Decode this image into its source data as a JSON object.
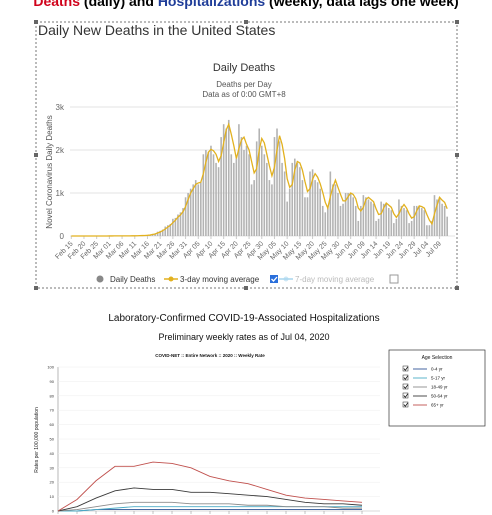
{
  "header": {
    "parts": [
      "Deaths",
      " (daily) and ",
      "Hospitalizations",
      " (weekly, data lags one week)"
    ]
  },
  "chart_data": [
    {
      "type": "bar",
      "frame_title": "Daily New Deaths in the United States",
      "title": "Daily Deaths",
      "subtitle": "Deaths per Day",
      "note": "Data as of 0:00 GMT+8",
      "y_label": "Novel Coronavirus Daily Deaths",
      "categories": [
        "Feb 15",
        null,
        null,
        null,
        null,
        "Feb 20",
        null,
        null,
        null,
        null,
        "Feb 25",
        null,
        null,
        null,
        null,
        "Mar 01",
        null,
        null,
        null,
        null,
        "Mar 06",
        null,
        null,
        null,
        null,
        "Mar 11",
        null,
        null,
        null,
        null,
        "Mar 16",
        null,
        null,
        null,
        null,
        "Mar 21",
        null,
        null,
        null,
        null,
        "Mar 26",
        null,
        null,
        null,
        null,
        "Mar 31",
        null,
        null,
        null,
        null,
        "Apr 05",
        null,
        null,
        null,
        null,
        "Apr 10",
        null,
        null,
        null,
        null,
        "Apr 15",
        null,
        null,
        null,
        null,
        "Apr 20",
        null,
        null,
        null,
        null,
        "Apr 25",
        null,
        null,
        null,
        null,
        "Apr 30",
        null,
        null,
        null,
        null,
        "May 05",
        null,
        null,
        null,
        null,
        "May 10",
        null,
        null,
        null,
        null,
        "May 15",
        null,
        null,
        null,
        null,
        "May 20",
        null,
        null,
        null,
        null,
        "May 25",
        null,
        null,
        null,
        null,
        "May 30",
        null,
        null,
        null,
        null,
        "Jun 04",
        null,
        null,
        null,
        null,
        "Jun 09",
        null,
        null,
        null,
        null,
        "Jun 14",
        null,
        null,
        null,
        null,
        "Jun 19",
        null,
        null,
        null,
        null,
        "Jun 24",
        null,
        null,
        null,
        null,
        "Jun 29",
        null,
        null,
        null,
        null,
        "Jul 04",
        null,
        null,
        null,
        null,
        "Jul 09",
        null,
        null,
        null
      ],
      "series": [
        {
          "name": "Daily Deaths",
          "type": "bar",
          "color": "#b3b3b3",
          "values": [
            0,
            0,
            0,
            0,
            0,
            0,
            0,
            0,
            0,
            0,
            0,
            0,
            0,
            0,
            1,
            1,
            1,
            4,
            3,
            2,
            1,
            2,
            4,
            3,
            4,
            6,
            8,
            10,
            12,
            15,
            22,
            30,
            50,
            60,
            100,
            120,
            150,
            220,
            250,
            280,
            400,
            420,
            500,
            550,
            650,
            900,
            1000,
            1100,
            1200,
            1300,
            1200,
            1250,
            1900,
            2000,
            1950,
            2100,
            1900,
            1700,
            1600,
            2300,
            2600,
            2500,
            2700,
            1900,
            1700,
            1800,
            2600,
            2300,
            2000,
            2100,
            1900,
            1200,
            1300,
            2200,
            2500,
            2100,
            1900,
            1700,
            1300,
            1200,
            2300,
            2500,
            2200,
            1700,
            1500,
            800,
            1100,
            1700,
            1800,
            1700,
            1600,
            1300,
            900,
            900,
            1500,
            1550,
            1300,
            1250,
            1100,
            700,
            550,
            700,
            1500,
            1200,
            1200,
            1000,
            700,
            750,
            1000,
            1000,
            1000,
            900,
            700,
            350,
            700,
            950,
            900,
            850,
            800,
            750,
            350,
            400,
            800,
            750,
            750,
            650,
            600,
            300,
            400,
            850,
            700,
            650,
            600,
            300,
            350,
            700,
            700,
            700,
            650,
            600,
            250,
            250,
            350,
            950,
            850,
            900,
            750,
            700,
            450
          ]
        },
        {
          "name": "3-day moving average",
          "type": "line",
          "color": "#e2b11f",
          "values": [
            0,
            0,
            0,
            0,
            0,
            0,
            0,
            0,
            0,
            0,
            0,
            0,
            0,
            0,
            0,
            1,
            1,
            2,
            3,
            3,
            2,
            2,
            2,
            3,
            4,
            4,
            6,
            8,
            10,
            12,
            16,
            22,
            34,
            47,
            70,
            93,
            123,
            163,
            207,
            250,
            310,
            367,
            440,
            490,
            567,
            683,
            850,
            1000,
            1100,
            1200,
            1233,
            1250,
            1450,
            1717,
            1950,
            2017,
            1983,
            1900,
            1733,
            1867,
            2167,
            2467,
            2600,
            2367,
            2100,
            1800,
            2033,
            2233,
            2300,
            2133,
            2000,
            1733,
            1467,
            1567,
            2000,
            2267,
            2167,
            1900,
            1633,
            1400,
            1600,
            2000,
            2333,
            2133,
            1800,
            1333,
            1133,
            1200,
            1533,
            1733,
            1700,
            1533,
            1267,
            1033,
            1100,
            1317,
            1450,
            1367,
            1217,
            1017,
            783,
            650,
            917,
            1133,
            1300,
            1133,
            967,
            817,
            817,
            917,
            1000,
            967,
            867,
            650,
            583,
            667,
            850,
            900,
            850,
            800,
            633,
            500,
            517,
            650,
            767,
            717,
            667,
            517,
            433,
            517,
            650,
            733,
            650,
            517,
            417,
            450,
            583,
            700,
            683,
            650,
            500,
            367,
            283,
            517,
            717,
            900,
            833,
            783,
            633
          ]
        },
        {
          "name": "7-day moving average",
          "type": "line",
          "color": "#a9d6ee",
          "hidden": true
        }
      ],
      "ylim": [
        0,
        3000
      ],
      "yticks": [
        0,
        {
          "value": 1000,
          "label": "1k"
        },
        {
          "value": 2000,
          "label": "2k"
        },
        {
          "value": 3000,
          "label": "3k"
        }
      ],
      "grid": true
    },
    {
      "type": "line",
      "title": "Laboratory-Confirmed COVID-19-Associated Hospitalizations",
      "subtitle": "Preliminary weekly rates as of Jul 04, 2020",
      "inner_title": "COVID-NET :: Entire Network :: 2020 :: Weekly Rate",
      "y_label": "Rates per 100,000 population",
      "legend_title": "Age Selection",
      "categories": [
        null,
        null,
        null,
        null,
        null,
        null,
        null,
        null,
        null,
        null,
        null,
        null,
        null,
        null,
        null,
        null,
        null
      ],
      "series": [
        {
          "name": "0-4 yr",
          "color": "#2f5597",
          "values": [
            0,
            0,
            1,
            1,
            1,
            1,
            1,
            1,
            1,
            1,
            1,
            1,
            1,
            1,
            1,
            1,
            1
          ]
        },
        {
          "name": "5-17 yr",
          "color": "#4bacc6",
          "values": [
            0,
            0,
            1,
            2,
            3,
            3,
            3,
            3,
            3,
            3,
            3,
            3,
            3,
            3,
            3,
            3,
            3
          ]
        },
        {
          "name": "18-49 yr",
          "color": "#8c8c8c",
          "values": [
            0,
            1,
            3,
            5,
            6,
            6,
            6,
            5,
            5,
            5,
            4,
            4,
            3,
            3,
            3,
            2,
            2
          ]
        },
        {
          "name": "50-64 yr",
          "color": "#3a3a3a",
          "values": [
            0,
            3,
            9,
            14,
            16,
            15,
            15,
            13,
            13,
            12,
            11,
            10,
            8,
            6,
            5,
            5,
            4
          ]
        },
        {
          "name": "65+ yr",
          "color": "#c0504d",
          "values": [
            0,
            8,
            21,
            31,
            31,
            34,
            33,
            30,
            24,
            21,
            19,
            15,
            11,
            9,
            8,
            7,
            6
          ]
        }
      ],
      "ylim": [
        0,
        100
      ],
      "yticks": [
        0,
        10,
        20,
        30,
        40,
        50,
        60,
        70,
        80,
        90,
        100
      ],
      "grid": true
    }
  ]
}
